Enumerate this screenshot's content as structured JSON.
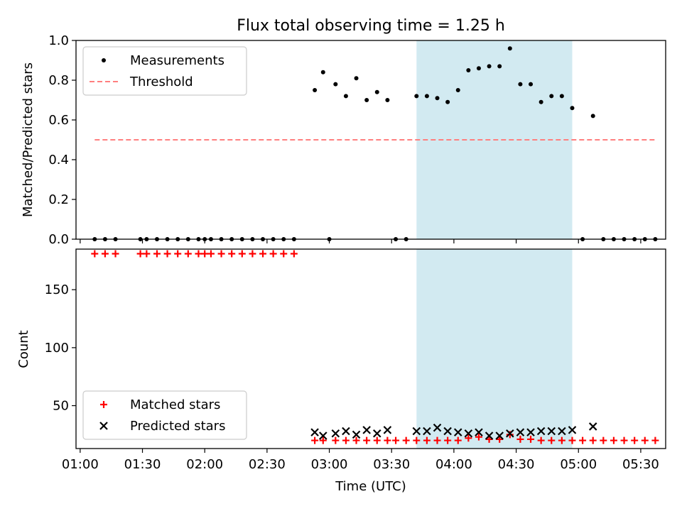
{
  "figure": {
    "title": "Flux total observing time = 1.25 h"
  },
  "colors": {
    "measurement": "#000000",
    "threshold": "#ff7f7f",
    "matched": "#ff0000",
    "predicted": "#000000",
    "highlight_band": "#add8e6"
  },
  "chart_data": [
    {
      "type": "scatter",
      "title": "Flux total observing time = 1.25 h",
      "xlabel": "",
      "ylabel": "Matched/Predicted stars",
      "xlim": [
        "00:58",
        "05:42"
      ],
      "ylim": [
        0,
        1.0
      ],
      "yticks": [
        0.0,
        0.2,
        0.4,
        0.6,
        0.8,
        1.0
      ],
      "ytick_labels": [
        "0.0",
        "0.2",
        "0.4",
        "0.6",
        "0.8",
        "1.0"
      ],
      "xticks": [
        "01:00",
        "01:30",
        "02:00",
        "02:30",
        "03:00",
        "03:30",
        "04:00",
        "04:30",
        "05:00",
        "05:30"
      ],
      "highlight_band": {
        "from": "03:42",
        "to": "04:57"
      },
      "legend": {
        "position": "top-left",
        "entries": [
          "Measurements",
          "Threshold"
        ]
      },
      "series": [
        {
          "name": "Measurements",
          "style": "dot",
          "points": [
            [
              "01:07",
              0
            ],
            [
              "01:12",
              0
            ],
            [
              "01:17",
              0
            ],
            [
              "01:29",
              0
            ],
            [
              "01:32",
              0
            ],
            [
              "01:37",
              0
            ],
            [
              "01:42",
              0
            ],
            [
              "01:47",
              0
            ],
            [
              "01:52",
              0
            ],
            [
              "01:57",
              0
            ],
            [
              "02:00",
              0
            ],
            [
              "02:03",
              0
            ],
            [
              "02:08",
              0
            ],
            [
              "02:13",
              0
            ],
            [
              "02:18",
              0
            ],
            [
              "02:23",
              0
            ],
            [
              "02:28",
              0
            ],
            [
              "02:33",
              0
            ],
            [
              "02:38",
              0
            ],
            [
              "02:43",
              0
            ],
            [
              "02:53",
              0.75
            ],
            [
              "02:57",
              0.84
            ],
            [
              "03:00",
              0
            ],
            [
              "03:03",
              0.78
            ],
            [
              "03:08",
              0.72
            ],
            [
              "03:13",
              0.81
            ],
            [
              "03:18",
              0.7
            ],
            [
              "03:23",
              0.74
            ],
            [
              "03:28",
              0.7
            ],
            [
              "03:32",
              0
            ],
            [
              "03:37",
              0
            ],
            [
              "03:42",
              0.72
            ],
            [
              "03:47",
              0.72
            ],
            [
              "03:52",
              0.71
            ],
            [
              "03:57",
              0.69
            ],
            [
              "04:02",
              0.75
            ],
            [
              "04:07",
              0.85
            ],
            [
              "04:12",
              0.86
            ],
            [
              "04:17",
              0.87
            ],
            [
              "04:22",
              0.87
            ],
            [
              "04:27",
              0.96
            ],
            [
              "04:32",
              0.78
            ],
            [
              "04:37",
              0.78
            ],
            [
              "04:42",
              0.69
            ],
            [
              "04:47",
              0.72
            ],
            [
              "04:52",
              0.72
            ],
            [
              "04:57",
              0.66
            ],
            [
              "05:02",
              0
            ],
            [
              "05:07",
              0.62
            ],
            [
              "05:12",
              0
            ],
            [
              "05:17",
              0
            ],
            [
              "05:22",
              0
            ],
            [
              "05:27",
              0
            ],
            [
              "05:32",
              0
            ],
            [
              "05:37",
              0
            ]
          ]
        },
        {
          "name": "Threshold",
          "style": "dashed-line",
          "points": [
            [
              "01:07",
              0.5
            ],
            [
              "05:37",
              0.5
            ]
          ]
        }
      ]
    },
    {
      "type": "scatter",
      "xlabel": "Time (UTC)",
      "ylabel": "Count",
      "xlim": [
        "00:58",
        "05:42"
      ],
      "ylim": [
        13,
        185
      ],
      "yticks": [
        50,
        100,
        150
      ],
      "ytick_labels": [
        "50",
        "100",
        "150"
      ],
      "xticks": [
        "01:00",
        "01:30",
        "02:00",
        "02:30",
        "03:00",
        "03:30",
        "04:00",
        "04:30",
        "05:00",
        "05:30"
      ],
      "xtick_labels": [
        "01:00",
        "01:30",
        "02:00",
        "02:30",
        "03:00",
        "03:30",
        "04:00",
        "04:30",
        "05:00",
        "05:30"
      ],
      "highlight_band": {
        "from": "03:42",
        "to": "04:57"
      },
      "legend": {
        "position": "bottom-left",
        "entries": [
          "Matched stars",
          "Predicted stars"
        ]
      },
      "series": [
        {
          "name": "Matched stars",
          "marker": "plus",
          "points": [
            [
              "01:07",
              181
            ],
            [
              "01:12",
              181
            ],
            [
              "01:17",
              181
            ],
            [
              "01:29",
              181
            ],
            [
              "01:32",
              181
            ],
            [
              "01:37",
              181
            ],
            [
              "01:42",
              181
            ],
            [
              "01:47",
              181
            ],
            [
              "01:52",
              181
            ],
            [
              "01:57",
              181
            ],
            [
              "02:00",
              181
            ],
            [
              "02:03",
              181
            ],
            [
              "02:08",
              181
            ],
            [
              "02:13",
              181
            ],
            [
              "02:18",
              181
            ],
            [
              "02:23",
              181
            ],
            [
              "02:28",
              181
            ],
            [
              "02:33",
              181
            ],
            [
              "02:38",
              181
            ],
            [
              "02:43",
              181
            ],
            [
              "02:53",
              20
            ],
            [
              "02:57",
              20
            ],
            [
              "03:03",
              20
            ],
            [
              "03:08",
              20
            ],
            [
              "03:13",
              20
            ],
            [
              "03:18",
              20
            ],
            [
              "03:23",
              20
            ],
            [
              "03:28",
              20
            ],
            [
              "03:32",
              20
            ],
            [
              "03:37",
              20
            ],
            [
              "03:42",
              20
            ],
            [
              "03:47",
              20
            ],
            [
              "03:52",
              20
            ],
            [
              "03:57",
              20
            ],
            [
              "04:02",
              20
            ],
            [
              "04:07",
              22
            ],
            [
              "04:12",
              23
            ],
            [
              "04:17",
              21
            ],
            [
              "04:22",
              21
            ],
            [
              "04:27",
              25
            ],
            [
              "04:32",
              21
            ],
            [
              "04:37",
              21
            ],
            [
              "04:42",
              20
            ],
            [
              "04:47",
              20
            ],
            [
              "04:52",
              20
            ],
            [
              "04:57",
              20
            ],
            [
              "05:02",
              20
            ],
            [
              "05:07",
              20
            ],
            [
              "05:12",
              20
            ],
            [
              "05:17",
              20
            ],
            [
              "05:22",
              20
            ],
            [
              "05:27",
              20
            ],
            [
              "05:32",
              20
            ],
            [
              "05:37",
              20
            ]
          ]
        },
        {
          "name": "Predicted stars",
          "marker": "x",
          "points": [
            [
              "02:53",
              27
            ],
            [
              "02:57",
              24
            ],
            [
              "03:03",
              26
            ],
            [
              "03:08",
              28
            ],
            [
              "03:13",
              25
            ],
            [
              "03:18",
              29
            ],
            [
              "03:23",
              26
            ],
            [
              "03:28",
              29
            ],
            [
              "03:42",
              28
            ],
            [
              "03:47",
              28
            ],
            [
              "03:52",
              31
            ],
            [
              "03:57",
              28
            ],
            [
              "04:02",
              27
            ],
            [
              "04:07",
              26
            ],
            [
              "04:12",
              27
            ],
            [
              "04:17",
              24
            ],
            [
              "04:22",
              24
            ],
            [
              "04:27",
              26
            ],
            [
              "04:32",
              27
            ],
            [
              "04:37",
              27
            ],
            [
              "04:42",
              28
            ],
            [
              "04:47",
              28
            ],
            [
              "04:52",
              28
            ],
            [
              "04:57",
              29
            ],
            [
              "05:07",
              32
            ]
          ]
        }
      ]
    }
  ]
}
